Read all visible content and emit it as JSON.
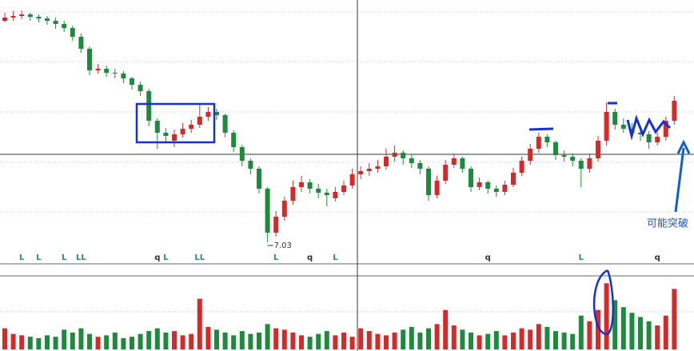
{
  "chart_data": {
    "type": "candlestick",
    "ylim": [
      6.76,
      10.06
    ],
    "up_color": "#d42a2a",
    "down_color": "#1e8a3c",
    "ohlc": [
      [
        9.8,
        9.9,
        9.78,
        9.84
      ],
      [
        9.84,
        9.92,
        9.8,
        9.86
      ],
      [
        9.86,
        9.93,
        9.82,
        9.88
      ],
      [
        9.88,
        9.9,
        9.8,
        9.85
      ],
      [
        9.85,
        9.88,
        9.78,
        9.83
      ],
      [
        9.83,
        9.86,
        9.75,
        9.8
      ],
      [
        9.8,
        9.84,
        9.7,
        9.76
      ],
      [
        9.76,
        9.8,
        9.66,
        9.71
      ],
      [
        9.71,
        9.74,
        9.55,
        9.6
      ],
      [
        9.6,
        9.64,
        9.4,
        9.45
      ],
      [
        9.45,
        9.48,
        9.12,
        9.18
      ],
      [
        9.18,
        9.26,
        9.14,
        9.2
      ],
      [
        9.2,
        9.24,
        9.1,
        9.15
      ],
      [
        9.15,
        9.2,
        9.08,
        9.14
      ],
      [
        9.14,
        9.17,
        9.02,
        9.08
      ],
      [
        9.08,
        9.1,
        8.94,
        9.0
      ],
      [
        9.0,
        9.04,
        8.86,
        8.92
      ],
      [
        8.92,
        8.95,
        8.48,
        8.55
      ],
      [
        8.55,
        8.58,
        8.2,
        8.4
      ],
      [
        8.4,
        8.46,
        8.28,
        8.36
      ],
      [
        8.3,
        8.44,
        8.22,
        8.38
      ],
      [
        8.38,
        8.52,
        8.34,
        8.45
      ],
      [
        8.45,
        8.56,
        8.4,
        8.5
      ],
      [
        8.5,
        8.76,
        8.46,
        8.6
      ],
      [
        8.6,
        8.72,
        8.55,
        8.66
      ],
      [
        8.66,
        8.7,
        8.56,
        8.62
      ],
      [
        8.62,
        8.64,
        8.34,
        8.4
      ],
      [
        8.4,
        8.43,
        8.16,
        8.22
      ],
      [
        8.22,
        8.25,
        7.98,
        8.05
      ],
      [
        8.05,
        8.08,
        7.88,
        7.95
      ],
      [
        7.95,
        7.98,
        7.64,
        7.7
      ],
      [
        7.7,
        7.72,
        7.03,
        7.15
      ],
      [
        7.15,
        7.42,
        7.1,
        7.35
      ],
      [
        7.35,
        7.6,
        7.3,
        7.55
      ],
      [
        7.55,
        7.8,
        7.5,
        7.72
      ],
      [
        7.72,
        7.86,
        7.66,
        7.78
      ],
      [
        7.78,
        7.82,
        7.64,
        7.7
      ],
      [
        7.7,
        7.76,
        7.58,
        7.65
      ],
      [
        7.65,
        7.7,
        7.48,
        7.62
      ],
      [
        7.58,
        7.72,
        7.54,
        7.66
      ],
      [
        7.66,
        7.8,
        7.62,
        7.74
      ],
      [
        7.74,
        7.95,
        7.7,
        7.88
      ],
      [
        7.88,
        7.98,
        7.82,
        7.92
      ],
      [
        7.92,
        8.02,
        7.86,
        7.95
      ],
      [
        7.95,
        8.06,
        7.9,
        7.98
      ],
      [
        7.98,
        8.2,
        7.94,
        8.1
      ],
      [
        8.1,
        8.24,
        8.04,
        8.15
      ],
      [
        8.15,
        8.18,
        8.0,
        8.08
      ],
      [
        8.08,
        8.12,
        7.96,
        8.02
      ],
      [
        8.02,
        8.06,
        7.88,
        7.95
      ],
      [
        7.95,
        7.98,
        7.55,
        7.62
      ],
      [
        7.62,
        7.86,
        7.58,
        7.8
      ],
      [
        7.8,
        8.06,
        7.76,
        8.0
      ],
      [
        8.0,
        8.14,
        7.96,
        8.08
      ],
      [
        8.08,
        8.1,
        7.9,
        7.95
      ],
      [
        7.95,
        7.98,
        7.66,
        7.72
      ],
      [
        7.72,
        7.84,
        7.68,
        7.78
      ],
      [
        7.78,
        7.8,
        7.64,
        7.7
      ],
      [
        7.7,
        7.74,
        7.6,
        7.66
      ],
      [
        7.66,
        7.8,
        7.62,
        7.75
      ],
      [
        7.75,
        7.96,
        7.72,
        7.9
      ],
      [
        7.9,
        8.1,
        7.86,
        8.05
      ],
      [
        8.05,
        8.26,
        8.0,
        8.2
      ],
      [
        8.2,
        8.4,
        8.15,
        8.35
      ],
      [
        8.35,
        8.38,
        8.22,
        8.28
      ],
      [
        8.28,
        8.3,
        8.06,
        8.12
      ],
      [
        8.12,
        8.18,
        8.04,
        8.1
      ],
      [
        8.1,
        8.14,
        7.98,
        8.05
      ],
      [
        8.05,
        8.08,
        7.72,
        7.95
      ],
      [
        7.95,
        8.14,
        7.9,
        8.08
      ],
      [
        8.08,
        8.36,
        8.04,
        8.3
      ],
      [
        8.3,
        8.78,
        8.24,
        8.66
      ],
      [
        8.66,
        8.7,
        8.44,
        8.5
      ],
      [
        8.5,
        8.58,
        8.4,
        8.45
      ],
      [
        8.45,
        8.52,
        8.34,
        8.4
      ],
      [
        8.4,
        8.46,
        8.3,
        8.38
      ],
      [
        8.38,
        8.42,
        8.2,
        8.28
      ],
      [
        8.28,
        8.4,
        8.24,
        8.35
      ],
      [
        8.35,
        8.6,
        8.3,
        8.55
      ],
      [
        8.55,
        8.86,
        8.5,
        8.8
      ]
    ],
    "volume_lim": [
      0,
      100
    ],
    "volume": [
      30,
      22,
      20,
      18,
      16,
      20,
      18,
      28,
      24,
      30,
      22,
      18,
      20,
      24,
      16,
      18,
      22,
      26,
      30,
      24,
      26,
      20,
      22,
      72,
      32,
      28,
      24,
      20,
      26,
      22,
      24,
      36,
      30,
      28,
      24,
      20,
      18,
      22,
      26,
      20,
      24,
      18,
      30,
      26,
      22,
      20,
      24,
      28,
      32,
      24,
      30,
      36,
      56,
      34,
      28,
      24,
      20,
      22,
      26,
      20,
      24,
      30,
      28,
      36,
      32,
      26,
      24,
      22,
      48,
      40,
      56,
      94,
      70,
      60,
      52,
      46,
      40,
      34,
      48,
      86
    ],
    "low_label": "7.03",
    "annotation": "可能突破",
    "markers": [
      {
        "text": "L",
        "bar": 2
      },
      {
        "text": "L",
        "bar": 4
      },
      {
        "text": "L",
        "bar": 7
      },
      {
        "text": "LL",
        "bar": 9
      },
      {
        "text": "q",
        "bar": 18
      },
      {
        "text": "L",
        "bar": 19
      },
      {
        "text": "LL",
        "bar": 23
      },
      {
        "text": "L",
        "bar": 32
      },
      {
        "text": "q",
        "bar": 36
      },
      {
        "text": "L",
        "bar": 39
      },
      {
        "text": "q",
        "bar": 57
      },
      {
        "text": "L",
        "bar": 68
      },
      {
        "text": "q",
        "bar": 77
      }
    ]
  }
}
